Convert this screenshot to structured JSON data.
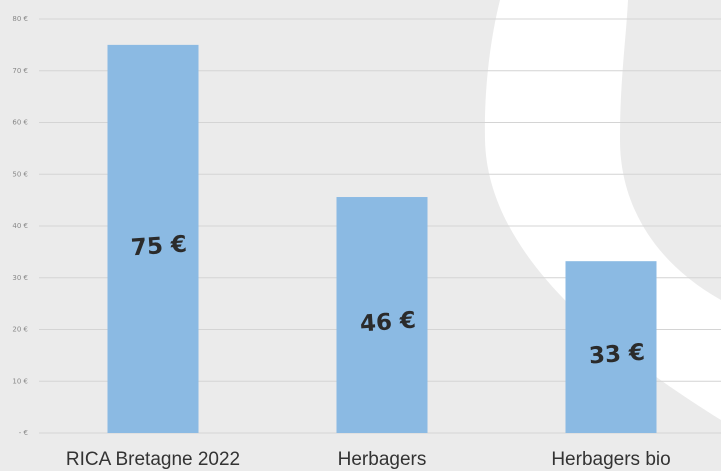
{
  "chart_data": {
    "type": "bar",
    "categories": [
      "RICA Bretagne 2022",
      "Herbagers",
      "Herbagers bio"
    ],
    "values": [
      75,
      45.6,
      33.2
    ],
    "value_labels": [
      "75 €",
      "46 €",
      "33 €"
    ],
    "color": "#8bbae3",
    "ylim": [
      0,
      80
    ],
    "yticks": [
      {
        "value": 0,
        "label": "- €"
      },
      {
        "value": 10,
        "label": "10 €"
      },
      {
        "value": 20,
        "label": "20 €"
      },
      {
        "value": 30,
        "label": "30 €"
      },
      {
        "value": 40,
        "label": "40 €"
      },
      {
        "value": 50,
        "label": "50 €"
      },
      {
        "value": 60,
        "label": "60 €"
      },
      {
        "value": 70,
        "label": "70 €"
      },
      {
        "value": 80,
        "label": "80 €"
      }
    ],
    "grid": true
  }
}
